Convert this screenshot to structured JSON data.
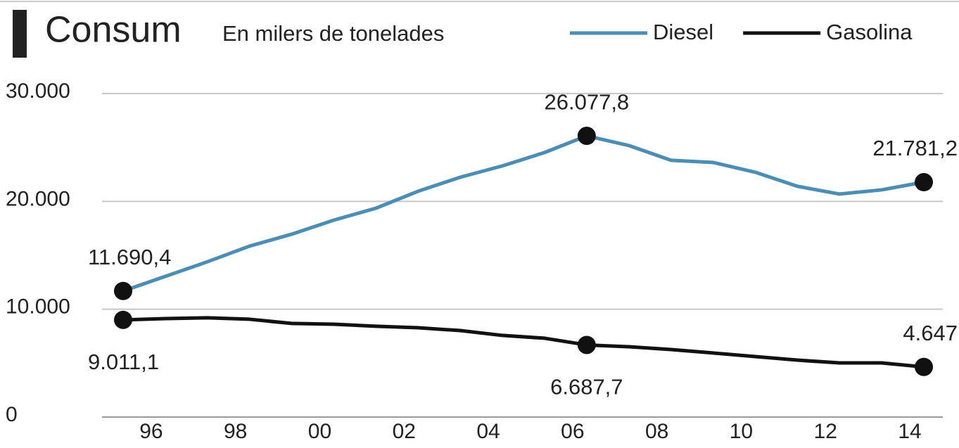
{
  "chart_data": {
    "type": "line",
    "title": "Consum",
    "subtitle": "En milers de tonelades",
    "categories": [
      null,
      "96",
      null,
      "98",
      null,
      "00",
      null,
      "02",
      null,
      "04",
      null,
      "06",
      null,
      "08",
      null,
      "10",
      null,
      "12",
      null,
      "14"
    ],
    "series": [
      {
        "name": "Diesel",
        "color": "#4a8db5",
        "values": [
          11690.4,
          13045,
          14400,
          15850,
          16960,
          18260,
          19370,
          20940,
          22240,
          23290,
          24530,
          26077.8,
          25180,
          23810,
          23610,
          22700,
          21400,
          20680,
          21070,
          21781.2
        ],
        "value_labels": [
          "11.690,4",
          null,
          null,
          null,
          null,
          null,
          null,
          null,
          null,
          null,
          null,
          "26.077,8",
          null,
          null,
          null,
          null,
          null,
          null,
          null,
          "21.781,2"
        ]
      },
      {
        "name": "Gasolina",
        "color": "#111111",
        "values": [
          9011.1,
          9130,
          9200,
          9070,
          8680,
          8610,
          8420,
          8280,
          8020,
          7570,
          7310,
          6687.7,
          6520,
          6260,
          5940,
          5610,
          5280,
          5020,
          5020,
          4647
        ],
        "value_labels": [
          "9.011,1",
          null,
          null,
          null,
          null,
          null,
          null,
          null,
          null,
          null,
          null,
          "6.687,7",
          null,
          null,
          null,
          null,
          null,
          null,
          null,
          "4.647"
        ]
      }
    ],
    "ylim": [
      0,
      30000
    ],
    "yticks": [
      0,
      {
        "value": 10000,
        "label": "10.000"
      },
      {
        "value": 20000,
        "label": "20.000"
      },
      {
        "value": 30000,
        "label": "30.000"
      }
    ],
    "grid": true,
    "legend": "top-right"
  }
}
